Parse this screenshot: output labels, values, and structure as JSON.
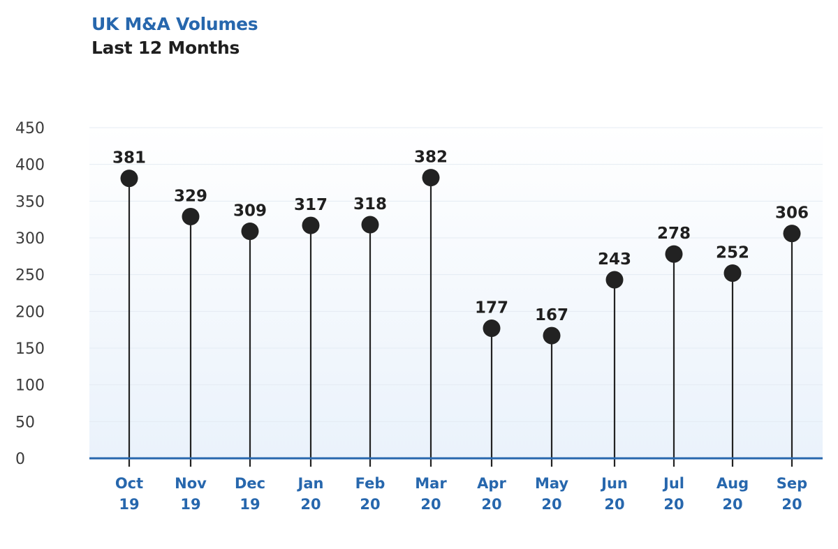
{
  "title": "UK M&A Volumes",
  "subtitle": "Last 12 Months",
  "colors": {
    "accent": "#2767ad",
    "marker": "#222222",
    "text": "#1f1f1f"
  },
  "chart_data": {
    "type": "lollipop",
    "title": "UK M&A Volumes",
    "subtitle": "Last 12 Months",
    "categories": [
      [
        "Oct",
        "19"
      ],
      [
        "Nov",
        "19"
      ],
      [
        "Dec",
        "19"
      ],
      [
        "Jan",
        "20"
      ],
      [
        "Feb",
        "20"
      ],
      [
        "Mar",
        "20"
      ],
      [
        "Apr",
        "20"
      ],
      [
        "May",
        "20"
      ],
      [
        "Jun",
        "20"
      ],
      [
        "Jul",
        "20"
      ],
      [
        "Aug",
        "20"
      ],
      [
        "Sep",
        "20"
      ]
    ],
    "values": [
      381,
      329,
      309,
      317,
      318,
      382,
      177,
      167,
      243,
      278,
      252,
      306
    ],
    "yticks": [
      0,
      50,
      100,
      150,
      200,
      250,
      300,
      350,
      400,
      450
    ],
    "ylim": [
      0,
      450
    ],
    "xlabel": "",
    "ylabel": "",
    "grid": true,
    "data_labels": true
  }
}
